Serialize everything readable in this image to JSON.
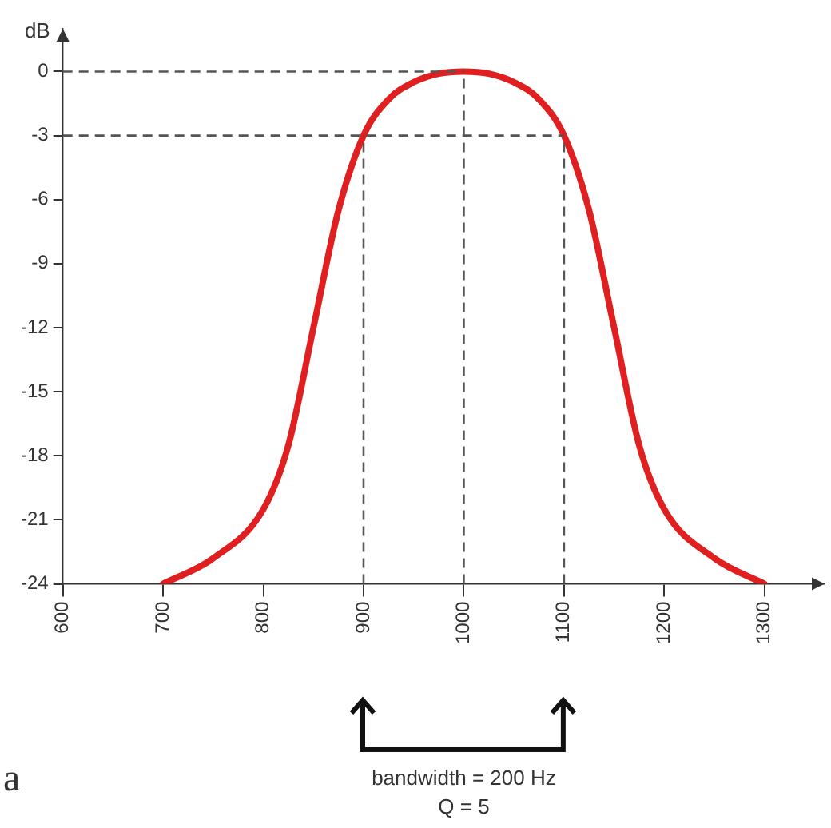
{
  "chart_data": {
    "type": "line",
    "ylabel": "dB",
    "x": [
      700,
      750,
      800,
      825,
      850,
      875,
      900,
      925,
      950,
      975,
      1000,
      1025,
      1050,
      1075,
      1100,
      1125,
      1150,
      1175,
      1200,
      1250,
      1300
    ],
    "series": [
      {
        "color": "#e02020",
        "values": [
          -24,
          -22.8,
          -20.5,
          -17.5,
          -12,
          -6.5,
          -3,
          -1.3,
          -0.5,
          -0.1,
          0,
          -0.1,
          -0.5,
          -1.3,
          -3,
          -6.5,
          -12,
          -17.5,
          -20.5,
          -22.8,
          -24
        ]
      }
    ],
    "xlim": [
      600,
      1360
    ],
    "xticks": [
      600,
      700,
      800,
      900,
      1000,
      1100,
      1200,
      1300
    ],
    "ylim": [
      -24,
      2
    ],
    "yticks": [
      0,
      -3,
      -6,
      -9,
      -12,
      -15,
      -18,
      -21,
      -24
    ],
    "ref_lines": [
      {
        "axis": "y",
        "value": 0,
        "line_style": "dashed",
        "color": "#555555"
      },
      {
        "axis": "y",
        "value": -3,
        "line_style": "dashed",
        "color": "#555555"
      },
      {
        "axis": "x",
        "value": 900,
        "line_style": "dashed",
        "color": "#555555"
      },
      {
        "axis": "x",
        "value": 1000,
        "line_style": "dashed",
        "color": "#555555"
      },
      {
        "axis": "x",
        "value": 1100,
        "line_style": "dashed",
        "color": "#555555"
      }
    ],
    "annotations": [
      "bandwidth = 200 Hz",
      "Q = 5",
      "a"
    ],
    "grid": false,
    "legend": false,
    "marker": "none",
    "line_style": "solid"
  }
}
